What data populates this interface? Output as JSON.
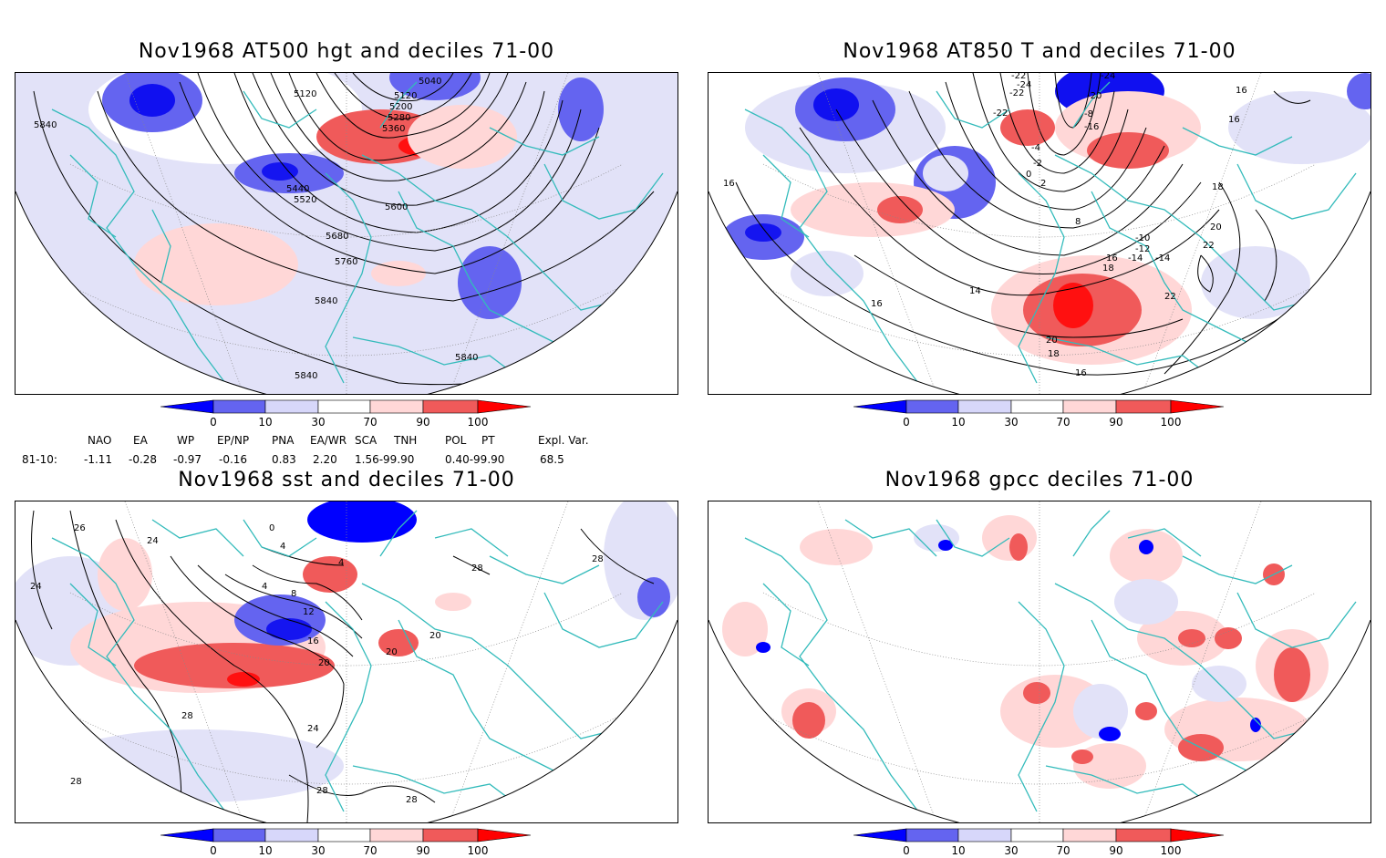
{
  "panels": [
    {
      "id": "p1",
      "title": "Nov1968 AT500 hgt and deciles 71-00",
      "contour_labels": [
        "5840",
        "5040",
        "5120",
        "5120",
        "5200",
        "5280",
        "5360",
        "5440",
        "5520",
        "5600",
        "5680",
        "5760",
        "5840",
        "5840",
        "5840"
      ]
    },
    {
      "id": "p2",
      "title": "Nov1968 AT850 T and deciles 71-00",
      "contour_labels": [
        "-22",
        "-24",
        "-20",
        "-22",
        "-24",
        "-22",
        "-16",
        "-8",
        "-4",
        "-2",
        "0",
        "2",
        "8",
        "16",
        "16",
        "16",
        "18",
        "-10",
        "-12",
        "-14",
        "20",
        "22",
        "22",
        "-14",
        "16",
        "18",
        "20",
        "18",
        "16",
        "14",
        "16"
      ]
    },
    {
      "id": "p3",
      "title": "Nov1968 sst and deciles 71-00",
      "contour_labels": [
        "24",
        "26",
        "28",
        "24",
        "0",
        "4",
        "4",
        "8",
        "12",
        "16",
        "20",
        "20",
        "20",
        "24",
        "28",
        "28",
        "28",
        "28",
        "28",
        "4"
      ]
    },
    {
      "id": "p4",
      "title": "Nov1968 gpcc deciles 71-00",
      "contour_labels": []
    }
  ],
  "colorbar": {
    "labels": [
      "0",
      "10",
      "30",
      "70",
      "90",
      "100"
    ],
    "colors": [
      "#0000ff",
      "#6464f0",
      "#d7d7fa",
      "#ffffff",
      "#ffd7d7",
      "#f05a5a",
      "#ff0000"
    ]
  },
  "indices": {
    "row_label": "81-10:",
    "headers": [
      "NAO",
      "EA",
      "WP",
      "EP/NP",
      "PNA",
      "EA/WR",
      "SCA",
      "TNH",
      "POL",
      "PT",
      "Expl. Var."
    ],
    "values": [
      "-1.11",
      "-0.28",
      "-0.97",
      "-0.16",
      "0.83",
      "2.20",
      "1.56-99.90",
      "0.40-99.90",
      "68.5"
    ]
  },
  "colors": {
    "coast": "#33bbbb",
    "frame": "#000000"
  }
}
